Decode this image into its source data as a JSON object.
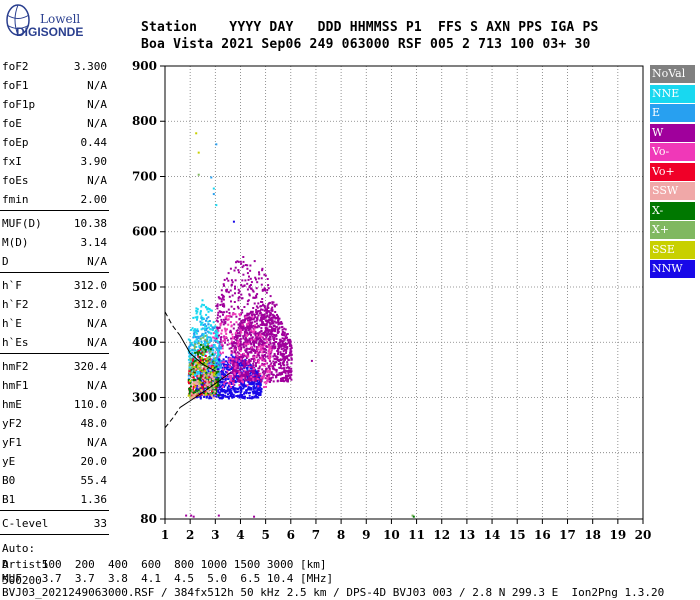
{
  "logo": {
    "line1": "Lowell",
    "line2": "DIGISONDE"
  },
  "header": {
    "line1": "Station    YYYY DAY   DDD HHMMSS P1  FFS S AXN PPS IGA PS",
    "line2": "Boa Vista 2021 Sep06 249 063000 RSF 005 2 713 100 03+ 30"
  },
  "params": {
    "group1": [
      {
        "k": "foF2",
        "v": "3.300"
      },
      {
        "k": "foF1",
        "v": "N/A"
      },
      {
        "k": "foF1p",
        "v": "N/A"
      },
      {
        "k": "foE",
        "v": "N/A"
      },
      {
        "k": "foEp",
        "v": "0.44"
      },
      {
        "k": "fxI",
        "v": "3.90"
      },
      {
        "k": "foEs",
        "v": "N/A"
      },
      {
        "k": "fmin",
        "v": "2.00"
      }
    ],
    "group2": [
      {
        "k": "MUF(D)",
        "v": "10.38"
      },
      {
        "k": "M(D)",
        "v": "3.14"
      },
      {
        "k": "D",
        "v": "N/A"
      }
    ],
    "group3": [
      {
        "k": "h`F",
        "v": "312.0"
      },
      {
        "k": "h`F2",
        "v": "312.0"
      },
      {
        "k": "h`E",
        "v": "N/A"
      },
      {
        "k": "h`Es",
        "v": "N/A"
      }
    ],
    "group4": [
      {
        "k": "hmF2",
        "v": "320.4"
      },
      {
        "k": "hmF1",
        "v": "N/A"
      },
      {
        "k": "hmE",
        "v": "110.0"
      },
      {
        "k": "yF2",
        "v": "48.0"
      },
      {
        "k": "yF1",
        "v": "N/A"
      },
      {
        "k": "yE",
        "v": "20.0"
      },
      {
        "k": "B0",
        "v": "55.4"
      },
      {
        "k": "B1",
        "v": "1.36"
      }
    ],
    "group5": [
      {
        "k": "C-level",
        "v": "33"
      }
    ],
    "auto": {
      "line1": "Auto:",
      "line2": "Artist5",
      "line3": "500200"
    }
  },
  "legend": [
    {
      "label": "NoVal",
      "color": "#808080"
    },
    {
      "label": "NNE",
      "color": "#18d8f0"
    },
    {
      "label": "E",
      "color": "#28a0f0"
    },
    {
      "label": "W",
      "color": "#a0009c"
    },
    {
      "label": "Vo-",
      "color": "#f038b8"
    },
    {
      "label": "Vo+",
      "color": "#f00028"
    },
    {
      "label": "SSW",
      "color": "#f0a8a8"
    },
    {
      "label": "X-",
      "color": "#007800"
    },
    {
      "label": "X+",
      "color": "#80b860"
    },
    {
      "label": "SSE",
      "color": "#c8d000"
    },
    {
      "label": "NNW",
      "color": "#1808e8"
    }
  ],
  "footer": {
    "line1": "D     100  200  400  600  800 1000 1500 3000 [km]",
    "line2": "MUF   3.7  3.7  3.8  4.1  4.5  5.0  6.5 10.4 [MHz]",
    "line3": "BVJ03_2021249063000.RSF / 384fx512h 50 kHz 2.5 km / DPS-4D BVJ03 003 / 2.8 N 299.3 E  Ion2Png 1.3.20"
  },
  "chart_data": {
    "type": "scatter",
    "xlim": [
      1,
      20
    ],
    "ylim": [
      80,
      900
    ],
    "x_ticks": [
      "1",
      "2",
      "3",
      "4",
      "5",
      "6",
      "7",
      "8",
      "9",
      "10",
      "11",
      "12",
      "13",
      "14",
      "15",
      "16",
      "17",
      "18",
      "19",
      "20"
    ],
    "y_ticks": [
      "80",
      "200",
      "300",
      "400",
      "500",
      "600",
      "700",
      "800",
      "900"
    ],
    "y_tick_values": [
      80,
      200,
      300,
      400,
      500,
      600,
      700,
      800,
      900
    ],
    "grid": true,
    "legend_position": "right",
    "clusters": [
      {
        "color": "#1808e8",
        "xr": [
          2.2,
          4.8
        ],
        "yr": [
          300,
          380
        ],
        "n": 900
      },
      {
        "color": "#a0009c",
        "xr": [
          3.6,
          6.0
        ],
        "yr": [
          330,
          470
        ],
        "n": 1000
      },
      {
        "color": "#a0009c",
        "xr": [
          3.0,
          5.4
        ],
        "yr": [
          390,
          560
        ],
        "n": 350
      },
      {
        "color": "#f038b8",
        "xr": [
          2.6,
          5.2
        ],
        "yr": [
          320,
          460
        ],
        "n": 250
      },
      {
        "color": "#28a0f0",
        "xr": [
          1.9,
          3.2
        ],
        "yr": [
          330,
          450
        ],
        "n": 250
      },
      {
        "color": "#18d8f0",
        "xr": [
          1.9,
          3.1
        ],
        "yr": [
          340,
          480
        ],
        "n": 180
      },
      {
        "color": "#f00028",
        "xr": [
          1.9,
          3.0
        ],
        "yr": [
          305,
          390
        ],
        "n": 160
      },
      {
        "color": "#007800",
        "xr": [
          1.9,
          3.1
        ],
        "yr": [
          305,
          400
        ],
        "n": 140
      },
      {
        "color": "#80b860",
        "xr": [
          1.9,
          3.0
        ],
        "yr": [
          305,
          420
        ],
        "n": 80
      },
      {
        "color": "#c8d000",
        "xr": [
          1.9,
          3.0
        ],
        "yr": [
          300,
          380
        ],
        "n": 50
      },
      {
        "color": "#f0a8a8",
        "xr": [
          2.0,
          3.0
        ],
        "yr": [
          300,
          380
        ],
        "n": 60
      }
    ],
    "sparse_points": [
      {
        "x": 2.2,
        "y": 780,
        "color": "#c8d000"
      },
      {
        "x": 2.3,
        "y": 745,
        "color": "#c8d000"
      },
      {
        "x": 2.3,
        "y": 705,
        "color": "#80b860"
      },
      {
        "x": 2.8,
        "y": 700,
        "color": "#28a0f0"
      },
      {
        "x": 3.0,
        "y": 760,
        "color": "#28a0f0"
      },
      {
        "x": 2.9,
        "y": 680,
        "color": "#18d8f0"
      },
      {
        "x": 3.7,
        "y": 620,
        "color": "#1808e8"
      },
      {
        "x": 3.0,
        "y": 650,
        "color": "#18d8f0"
      },
      {
        "x": 2.9,
        "y": 670,
        "color": "#28a0f0"
      },
      {
        "x": 6.8,
        "y": 368,
        "color": "#a0009c"
      },
      {
        "x": 1.8,
        "y": 88,
        "color": "#a0009c"
      },
      {
        "x": 2.0,
        "y": 88,
        "color": "#a0009c"
      },
      {
        "x": 2.1,
        "y": 86,
        "color": "#a0009c"
      },
      {
        "x": 3.1,
        "y": 88,
        "color": "#a0009c"
      },
      {
        "x": 4.5,
        "y": 86,
        "color": "#a0009c"
      },
      {
        "x": 10.8,
        "y": 88,
        "color": "#80b860"
      },
      {
        "x": 10.85,
        "y": 86,
        "color": "#007800"
      }
    ],
    "curves": [
      {
        "style": "dashed",
        "points": [
          [
            1.0,
            245
          ],
          [
            1.3,
            262
          ],
          [
            1.6,
            282
          ]
        ]
      },
      {
        "style": "solid",
        "points": [
          [
            1.6,
            282
          ],
          [
            2.2,
            300
          ],
          [
            3.0,
            325
          ],
          [
            3.6,
            345
          ]
        ]
      },
      {
        "style": "dashed",
        "points": [
          [
            1.0,
            455
          ],
          [
            1.3,
            430
          ],
          [
            1.6,
            412
          ]
        ]
      },
      {
        "style": "solid",
        "points": [
          [
            1.6,
            412
          ],
          [
            2.0,
            380
          ],
          [
            2.5,
            360
          ],
          [
            3.0,
            348
          ]
        ]
      }
    ]
  }
}
